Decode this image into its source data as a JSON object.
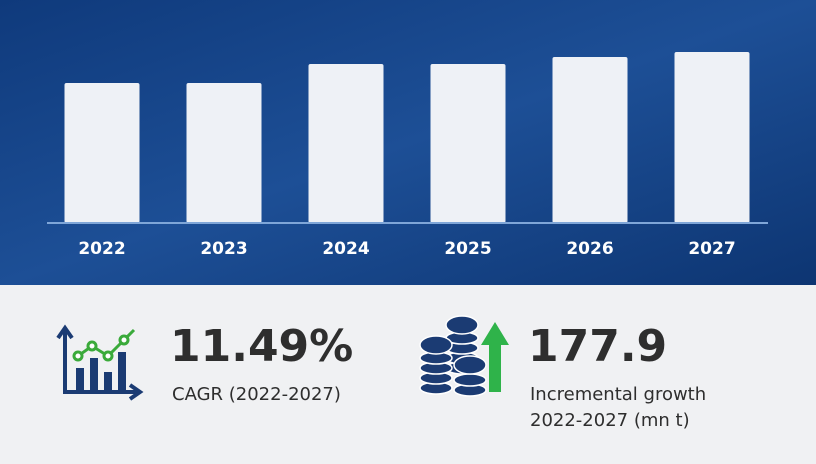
{
  "chart_data": {
    "type": "bar",
    "categories": [
      "2022",
      "2023",
      "2024",
      "2025",
      "2026",
      "2027"
    ],
    "values": [
      140,
      140,
      159,
      159,
      166,
      171
    ],
    "color": "#eef1f6",
    "ylim": [
      0,
      200
    ]
  },
  "summary": [
    {
      "value": "11.49%",
      "label": [
        "CAGR (2022-2027)"
      ]
    },
    {
      "value": "177.9",
      "label": [
        "Incremental growth",
        "2022-2027 (mn t)"
      ]
    }
  ]
}
